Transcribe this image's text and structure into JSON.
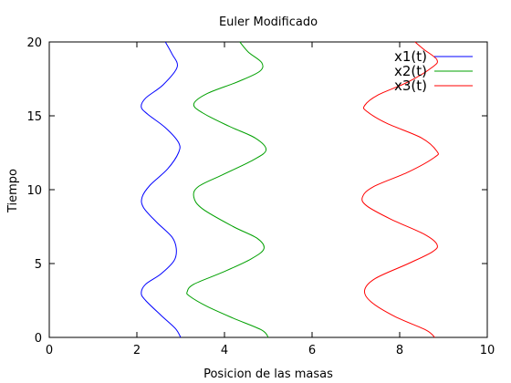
{
  "chart_data": {
    "type": "line",
    "title": "Euler Modificado",
    "xlabel": "Posicion de las masas",
    "ylabel": "Tiempo",
    "xlim": [
      0,
      10
    ],
    "ylim": [
      0,
      20
    ],
    "xticks": [
      0,
      2,
      4,
      6,
      8,
      10
    ],
    "yticks": [
      0,
      5,
      10,
      15,
      20
    ],
    "grid": false,
    "legend_position": "top-right",
    "series": [
      {
        "name": "x1(t)",
        "color": "#0000ff",
        "points": [
          [
            3.0,
            0
          ],
          [
            2.88,
            0.6
          ],
          [
            2.55,
            1.5
          ],
          [
            2.2,
            2.5
          ],
          [
            2.1,
            3.0
          ],
          [
            2.2,
            3.6
          ],
          [
            2.55,
            4.3
          ],
          [
            2.85,
            5.2
          ],
          [
            2.9,
            6.0
          ],
          [
            2.8,
            6.8
          ],
          [
            2.45,
            7.8
          ],
          [
            2.15,
            8.8
          ],
          [
            2.12,
            9.5
          ],
          [
            2.3,
            10.3
          ],
          [
            2.7,
            11.4
          ],
          [
            2.95,
            12.5
          ],
          [
            2.95,
            13.2
          ],
          [
            2.65,
            14.2
          ],
          [
            2.25,
            15.1
          ],
          [
            2.1,
            15.6
          ],
          [
            2.2,
            16.2
          ],
          [
            2.6,
            17.1
          ],
          [
            2.92,
            18.3
          ],
          [
            2.8,
            19.2
          ],
          [
            2.65,
            20
          ]
        ]
      },
      {
        "name": "x2(t)",
        "color": "#00a000",
        "points": [
          [
            5.0,
            0
          ],
          [
            4.85,
            0.5
          ],
          [
            4.2,
            1.3
          ],
          [
            3.6,
            2.1
          ],
          [
            3.2,
            2.8
          ],
          [
            3.15,
            3.1
          ],
          [
            3.3,
            3.6
          ],
          [
            3.95,
            4.4
          ],
          [
            4.6,
            5.3
          ],
          [
            4.9,
            6.0
          ],
          [
            4.75,
            6.7
          ],
          [
            4.2,
            7.5
          ],
          [
            3.5,
            8.7
          ],
          [
            3.3,
            9.5
          ],
          [
            3.4,
            10.2
          ],
          [
            3.95,
            11.0
          ],
          [
            4.65,
            12.0
          ],
          [
            4.95,
            12.7
          ],
          [
            4.7,
            13.5
          ],
          [
            4.1,
            14.3
          ],
          [
            3.5,
            15.2
          ],
          [
            3.3,
            15.8
          ],
          [
            3.6,
            16.5
          ],
          [
            4.3,
            17.3
          ],
          [
            4.8,
            18.0
          ],
          [
            4.85,
            18.6
          ],
          [
            4.55,
            19.3
          ],
          [
            4.35,
            20
          ]
        ]
      },
      {
        "name": "x3(t)",
        "color": "#ff0000",
        "points": [
          [
            8.8,
            0
          ],
          [
            8.6,
            0.5
          ],
          [
            7.9,
            1.4
          ],
          [
            7.35,
            2.4
          ],
          [
            7.2,
            3.2
          ],
          [
            7.45,
            4.0
          ],
          [
            8.2,
            5.0
          ],
          [
            8.75,
            5.8
          ],
          [
            8.85,
            6.3
          ],
          [
            8.55,
            7.0
          ],
          [
            7.8,
            8.0
          ],
          [
            7.25,
            8.9
          ],
          [
            7.15,
            9.5
          ],
          [
            7.4,
            10.2
          ],
          [
            8.2,
            11.2
          ],
          [
            8.8,
            12.2
          ],
          [
            8.85,
            12.6
          ],
          [
            8.5,
            13.5
          ],
          [
            7.7,
            14.5
          ],
          [
            7.25,
            15.3
          ],
          [
            7.2,
            15.7
          ],
          [
            7.5,
            16.4
          ],
          [
            8.2,
            17.3
          ],
          [
            8.75,
            18.3
          ],
          [
            8.85,
            18.8
          ],
          [
            8.55,
            19.5
          ],
          [
            8.35,
            20
          ]
        ]
      }
    ]
  }
}
